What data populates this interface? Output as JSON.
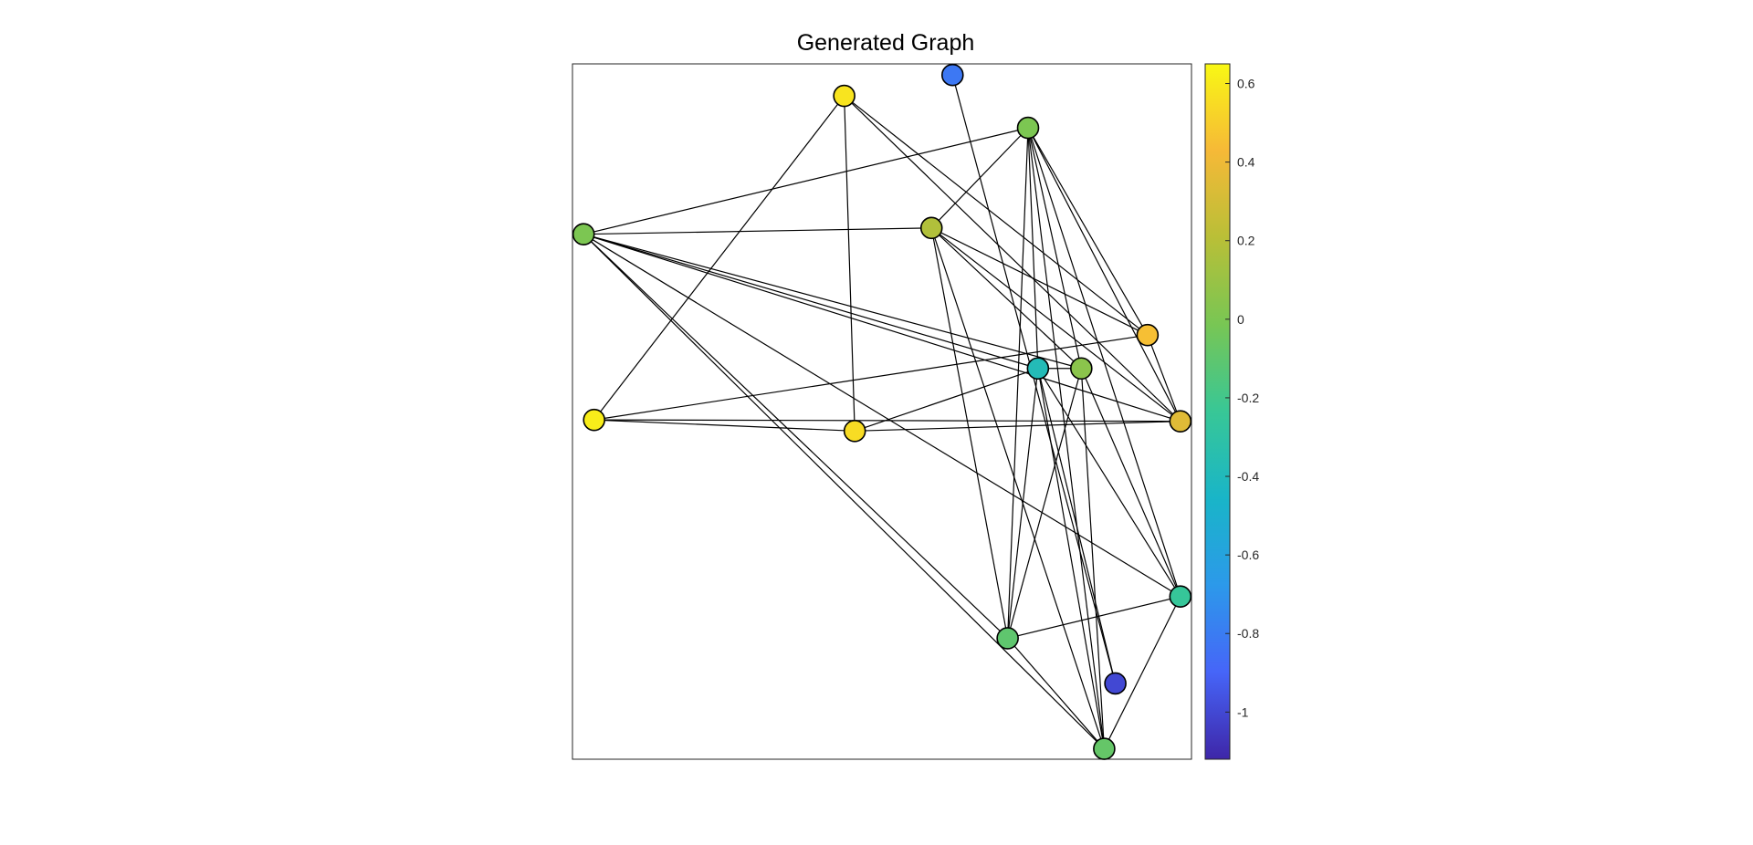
{
  "chart_data": {
    "type": "network-graph",
    "title": "Generated Graph",
    "xlim": [
      0,
      100
    ],
    "ylim": [
      0,
      100
    ],
    "nodes": [
      {
        "id": 1,
        "x": 1.8,
        "y": 75.5,
        "value": 0.0
      },
      {
        "id": 2,
        "x": 3.5,
        "y": 48.8,
        "value": 0.61
      },
      {
        "id": 3,
        "x": 43.9,
        "y": 95.4,
        "value": 0.58
      },
      {
        "id": 4,
        "x": 45.6,
        "y": 47.2,
        "value": 0.55
      },
      {
        "id": 5,
        "x": 61.4,
        "y": 98.4,
        "value": -0.82
      },
      {
        "id": 6,
        "x": 58.0,
        "y": 76.4,
        "value": 0.18
      },
      {
        "id": 7,
        "x": 73.6,
        "y": 90.8,
        "value": 0.0
      },
      {
        "id": 8,
        "x": 75.2,
        "y": 56.2,
        "value": -0.38
      },
      {
        "id": 9,
        "x": 82.2,
        "y": 56.2,
        "value": 0.05
      },
      {
        "id": 10,
        "x": 92.9,
        "y": 61.0,
        "value": 0.45
      },
      {
        "id": 11,
        "x": 98.2,
        "y": 48.6,
        "value": 0.35
      },
      {
        "id": 12,
        "x": 98.2,
        "y": 23.4,
        "value": -0.25
      },
      {
        "id": 13,
        "x": 70.3,
        "y": 17.4,
        "value": -0.1
      },
      {
        "id": 14,
        "x": 87.7,
        "y": 10.9,
        "value": -1.0
      },
      {
        "id": 15,
        "x": 85.9,
        "y": 1.5,
        "value": -0.08
      }
    ],
    "edges": [
      [
        1,
        7
      ],
      [
        1,
        6
      ],
      [
        1,
        8
      ],
      [
        1,
        9
      ],
      [
        1,
        11
      ],
      [
        1,
        12
      ],
      [
        1,
        13
      ],
      [
        1,
        15
      ],
      [
        2,
        3
      ],
      [
        2,
        4
      ],
      [
        2,
        10
      ],
      [
        2,
        11
      ],
      [
        3,
        4
      ],
      [
        3,
        11
      ],
      [
        3,
        10
      ],
      [
        4,
        8
      ],
      [
        4,
        11
      ],
      [
        5,
        14
      ],
      [
        6,
        7
      ],
      [
        6,
        13
      ],
      [
        6,
        9
      ],
      [
        6,
        10
      ],
      [
        6,
        11
      ],
      [
        6,
        15
      ],
      [
        7,
        8
      ],
      [
        7,
        9
      ],
      [
        7,
        10
      ],
      [
        7,
        11
      ],
      [
        7,
        12
      ],
      [
        7,
        13
      ],
      [
        7,
        15
      ],
      [
        8,
        9
      ],
      [
        8,
        12
      ],
      [
        8,
        13
      ],
      [
        8,
        14
      ],
      [
        8,
        15
      ],
      [
        9,
        12
      ],
      [
        9,
        13
      ],
      [
        9,
        15
      ],
      [
        10,
        11
      ],
      [
        12,
        13
      ],
      [
        12,
        15
      ],
      [
        13,
        15
      ]
    ],
    "colorbar": {
      "colormap": "parula",
      "limits": [
        -1.12,
        0.65
      ],
      "ticks": [
        0.6,
        0.4,
        0.2,
        0,
        -0.2,
        -0.4,
        -0.6,
        -0.8,
        -1
      ],
      "tick_labels": [
        "0.6",
        "0.4",
        "0.2",
        "0",
        "-0.2",
        "-0.4",
        "-0.6",
        "-0.8",
        "-1"
      ],
      "colormap_stops": [
        "#3e26a8",
        "#4665f8",
        "#2c99ea",
        "#19b5c8",
        "#38c796",
        "#78c654",
        "#b9bf37",
        "#f6b937",
        "#f9f814"
      ]
    },
    "grid": false,
    "legend": "none"
  }
}
